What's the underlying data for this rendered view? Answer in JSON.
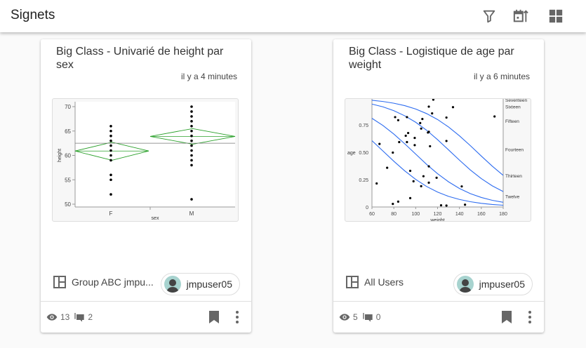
{
  "header": {
    "title": "Signets",
    "icons": [
      "filter-icon",
      "calendar-sort-icon",
      "grid-view-icon"
    ]
  },
  "colors": {
    "icon": "#666666",
    "curve": "#2d6cf0",
    "diamond": "#2aa02a"
  },
  "cards": [
    {
      "title": "Big Class - Univarié de height par sex",
      "time": "il y a 4 minutes",
      "group": "Group ABC jmpu...",
      "user": "jmpuser05",
      "views": "13",
      "comments": "2",
      "chart_data": {
        "type": "scatter",
        "subtype": "oneway",
        "xlabel": "sex",
        "ylabel": "height",
        "categories": [
          "F",
          "M"
        ],
        "ylim": [
          50,
          70
        ],
        "yticks": [
          "50",
          "55",
          "60",
          "65",
          "70"
        ],
        "series": [
          {
            "category": "F",
            "values": [
              66,
              65,
              64,
              63,
              62,
              61,
              60,
              59,
              56,
              55,
              52
            ],
            "mean": 60.9,
            "ci": [
              59.0,
              62.7
            ]
          },
          {
            "category": "M",
            "values": [
              70,
              69,
              68,
              67,
              66,
              65,
              64,
              63,
              62,
              61,
              60,
              59,
              58,
              51
            ],
            "mean": 63.9,
            "ci": [
              62.3,
              65.5
            ]
          }
        ],
        "grand_mean": 62.5
      }
    },
    {
      "title": "Big Class - Logistique de age par weight",
      "time": "il y a 6 minutes",
      "group": "All Users",
      "user": "jmpuser05",
      "views": "5",
      "comments": "0",
      "chart_data": {
        "type": "scatter",
        "subtype": "logistic",
        "xlabel": "weight",
        "ylabel": "age",
        "xlim": [
          60,
          180
        ],
        "ylim": [
          0,
          1
        ],
        "xticks": [
          "60",
          "80",
          "100",
          "120",
          "140",
          "160",
          "180"
        ],
        "yticks": [
          "0",
          "0.25",
          "0.50",
          "0.75"
        ],
        "right_labels": [
          {
            "label": "Seventeen",
            "p": 0.98
          },
          {
            "label": "Sixteen",
            "p": 0.92
          },
          {
            "label": "Fifteen",
            "p": 0.79
          },
          {
            "label": "Fourteen",
            "p": 0.53
          },
          {
            "label": "Thirteen",
            "p": 0.29
          },
          {
            "label": "Twelve",
            "p": 0.1
          }
        ],
        "points": [
          [
            64.3,
            0.215
          ],
          [
            66.9,
            0.576
          ],
          [
            73.9,
            0.358
          ],
          [
            79.1,
            0.028
          ],
          [
            79.1,
            0.497
          ],
          [
            81.2,
            0.821
          ],
          [
            84,
            0.049
          ],
          [
            84,
            0.793
          ],
          [
            84.9,
            0.593
          ],
          [
            90.9,
            0.651
          ],
          [
            92,
            0.821
          ],
          [
            92,
            0.593
          ],
          [
            93.1,
            0.676
          ],
          [
            95,
            0.33
          ],
          [
            95,
            0.081
          ],
          [
            98,
            0.235
          ],
          [
            99.1,
            0.631
          ],
          [
            99.1,
            0.565
          ],
          [
            104.1,
            0.767
          ],
          [
            105,
            0.716
          ],
          [
            105,
            0.19
          ],
          [
            106.1,
            0.804
          ],
          [
            107.1,
            0.281
          ],
          [
            111.2,
            0.68
          ],
          [
            112,
            0.687
          ],
          [
            112,
            0.917
          ],
          [
            112,
            0.371
          ],
          [
            112,
            0.222
          ],
          [
            113.1,
            0.555
          ],
          [
            115,
            0.855
          ],
          [
            116.1,
            0.981
          ],
          [
            119.1,
            0.267
          ],
          [
            123.2,
            0.015
          ],
          [
            128.1,
            0.817
          ],
          [
            128.1,
            0.603
          ],
          [
            128.1,
            0.013
          ],
          [
            134.1,
            0.912
          ],
          [
            142.1,
            0.188
          ],
          [
            145.1,
            0.021
          ],
          [
            172.1,
            0.827
          ]
        ],
        "curve_x": [
          60,
          70,
          80,
          90,
          100,
          110,
          120,
          130,
          140,
          150,
          160,
          170,
          180
        ],
        "curves": [
          [
            0.606,
            0.512,
            0.418,
            0.33,
            0.252,
            0.187,
            0.136,
            0.097,
            0.069,
            0.048,
            0.033,
            0.023,
            0.016
          ],
          [
            0.81,
            0.745,
            0.666,
            0.577,
            0.483,
            0.389,
            0.304,
            0.23,
            0.169,
            0.122,
            0.087,
            0.061,
            0.043
          ],
          [
            0.94,
            0.915,
            0.88,
            0.833,
            0.774,
            0.701,
            0.615,
            0.522,
            0.428,
            0.338,
            0.259,
            0.193,
            0.141
          ],
          [
            0.975,
            0.964,
            0.948,
            0.926,
            0.895,
            0.853,
            0.799,
            0.731,
            0.65,
            0.56,
            0.465,
            0.373,
            0.289
          ]
        ]
      }
    }
  ]
}
